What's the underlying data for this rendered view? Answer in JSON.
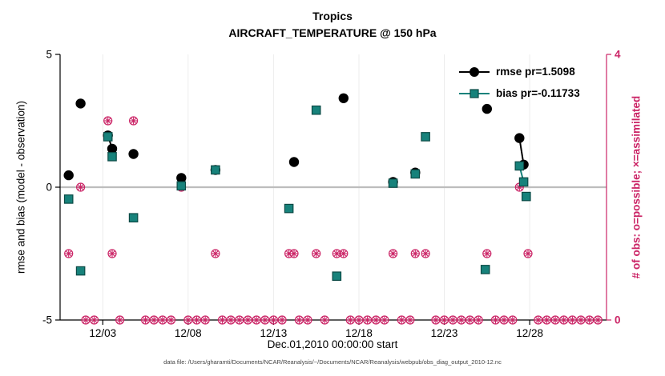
{
  "figure": {
    "title": "Tropics",
    "subtitle": "AIRCRAFT_TEMPERATURE @ 150 hPa",
    "xlabel": "Dec.01,2010 00:00:00 start",
    "ylabel_left": "rmse and bias (model - observation)",
    "ylabel_right": "# of obs: o=possible; ×=assimilated",
    "footer": "data file: /Users/gharamti/Documents/NCAR/Reanalysis/~/Documents/NCAR/Reanalysis/webpub/obs_diag_output_2010-12.nc",
    "colors": {
      "axis": "#000000",
      "zero_line": "#bdbdbd",
      "grid": "#ececec",
      "background": "#ffffff"
    }
  },
  "chart_data": {
    "type": "scatter",
    "title": "Tropics",
    "subtitle": "AIRCRAFT_TEMPERATURE @ 150 hPa",
    "xlabel": "Dec.01,2010 00:00:00 start",
    "x_unit": "day of December 2010",
    "xlim": [
      0.5,
      32.5
    ],
    "ylim_left": [
      -5,
      5
    ],
    "ylim_right": [
      0,
      4
    ],
    "grid_x": true,
    "zero_line_y": 0,
    "legend_position": "top-right-inside",
    "xticks": [
      {
        "x": 3,
        "label": "12/03"
      },
      {
        "x": 8,
        "label": "12/08"
      },
      {
        "x": 13,
        "label": "12/13"
      },
      {
        "x": 18,
        "label": "12/18"
      },
      {
        "x": 23,
        "label": "12/23"
      },
      {
        "x": 28,
        "label": "12/28"
      }
    ],
    "yticks_left": [
      {
        "y": 5,
        "label": "5"
      },
      {
        "y": 0,
        "label": "0"
      },
      {
        "y": -5,
        "label": "-5"
      }
    ],
    "yticks_right": [
      {
        "y": 4,
        "label": "4"
      },
      {
        "y": 0,
        "label": "0"
      }
    ],
    "series": [
      {
        "name": "rmse",
        "label": "rmse pr=1.5098",
        "marker": "circle",
        "color": "#000000",
        "segments": [
          [
            [
              1.0,
              0.45
            ]
          ],
          [
            [
              1.7,
              3.15
            ]
          ],
          [
            [
              3.3,
              1.95
            ],
            [
              3.55,
              1.45
            ]
          ],
          [
            [
              4.8,
              1.25
            ]
          ],
          [
            [
              7.6,
              0.35
            ]
          ],
          [
            [
              9.6,
              0.65
            ]
          ],
          [
            [
              14.2,
              0.95
            ]
          ],
          [
            [
              17.1,
              3.35
            ]
          ],
          [
            [
              20.0,
              0.2
            ]
          ],
          [
            [
              21.3,
              0.55
            ]
          ],
          [
            [
              25.5,
              2.95
            ]
          ],
          [
            [
              27.4,
              1.85
            ],
            [
              27.65,
              0.85
            ]
          ]
        ]
      },
      {
        "name": "bias",
        "label": "bias pr=-0.11733",
        "marker": "square",
        "color": "#17827b",
        "edge_color": "#0b4a45",
        "segments": [
          [
            [
              1.0,
              -0.45
            ]
          ],
          [
            [
              1.7,
              -3.15
            ]
          ],
          [
            [
              3.3,
              1.9
            ]
          ],
          [
            [
              3.55,
              1.15
            ]
          ],
          [
            [
              4.8,
              -1.15
            ]
          ],
          [
            [
              7.6,
              0.05
            ]
          ],
          [
            [
              9.6,
              0.65
            ]
          ],
          [
            [
              13.9,
              -0.8
            ]
          ],
          [
            [
              15.5,
              2.9
            ]
          ],
          [
            [
              16.7,
              -3.35
            ]
          ],
          [
            [
              20.0,
              0.15
            ]
          ],
          [
            [
              21.3,
              0.5
            ]
          ],
          [
            [
              21.9,
              1.9
            ]
          ],
          [
            [
              25.4,
              -3.1
            ]
          ],
          [
            [
              27.4,
              0.8
            ],
            [
              27.65,
              0.2
            ]
          ],
          [
            [
              27.8,
              -0.35
            ]
          ]
        ]
      }
    ],
    "obs": {
      "color": "#cb2466",
      "marker": "circled-asterisk",
      "meaning": "o=possible; ×=assimilated (overlaid)",
      "events": [
        [
          1.0,
          1
        ],
        [
          1.7,
          2
        ],
        [
          3.3,
          3
        ],
        [
          3.55,
          1
        ],
        [
          4.8,
          3
        ],
        [
          7.6,
          2
        ],
        [
          9.6,
          1
        ],
        [
          13.9,
          1
        ],
        [
          14.2,
          1
        ],
        [
          15.5,
          1
        ],
        [
          16.7,
          1
        ],
        [
          17.1,
          1
        ],
        [
          20.0,
          1
        ],
        [
          21.3,
          1
        ],
        [
          21.9,
          1
        ],
        [
          25.5,
          1
        ],
        [
          27.4,
          2
        ],
        [
          27.9,
          1
        ]
      ],
      "baseline": {
        "start": 1.0,
        "end": 32.0,
        "step": 0.5,
        "count": 0
      }
    }
  },
  "legend": {
    "items": [
      {
        "label": "rmse pr=1.5098"
      },
      {
        "label": "bias pr=-0.11733"
      }
    ]
  }
}
